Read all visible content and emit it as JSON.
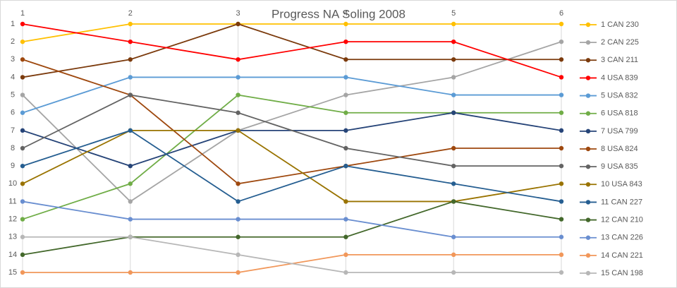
{
  "chart_data": {
    "type": "line",
    "title": "Progress NA Soling 2008",
    "x": [
      1,
      2,
      3,
      4,
      5,
      6
    ],
    "xlim": [
      1,
      6
    ],
    "xticks": [
      1,
      2,
      3,
      4,
      5,
      6
    ],
    "ylim": [
      1,
      15
    ],
    "y_reversed": true,
    "yticks": [
      1,
      2,
      3,
      4,
      5,
      6,
      7,
      8,
      9,
      10,
      11,
      12,
      13,
      14,
      15
    ],
    "grid": "x",
    "legend": "right",
    "series": [
      {
        "name": "1 CAN 230",
        "color": "#ffc000",
        "values": [
          2,
          1,
          1,
          1,
          1,
          1
        ]
      },
      {
        "name": "2 CAN 225",
        "color": "#a5a5a5",
        "values": [
          5,
          11,
          7,
          5,
          4,
          2
        ]
      },
      {
        "name": "3 CAN 211",
        "color": "#7b3a0c",
        "values": [
          4,
          3,
          1,
          3,
          3,
          3
        ]
      },
      {
        "name": "4 USA 839",
        "color": "#ff0000",
        "values": [
          1,
          2,
          3,
          2,
          2,
          4
        ]
      },
      {
        "name": "5 USA 832",
        "color": "#5b9bd5",
        "values": [
          6,
          4,
          4,
          4,
          5,
          5
        ]
      },
      {
        "name": "6 USA 818",
        "color": "#70ad47",
        "values": [
          12,
          10,
          5,
          6,
          6,
          6
        ]
      },
      {
        "name": "7 USA 799",
        "color": "#264478",
        "values": [
          7,
          9,
          7,
          7,
          6,
          7
        ]
      },
      {
        "name": "8 USA 824",
        "color": "#9e480e",
        "values": [
          3,
          5,
          10,
          9,
          8,
          8
        ]
      },
      {
        "name": "9 USA 835",
        "color": "#636363",
        "values": [
          8,
          5,
          6,
          8,
          9,
          9
        ]
      },
      {
        "name": "10 USA 843",
        "color": "#997300",
        "values": [
          10,
          7,
          7,
          11,
          11,
          10
        ]
      },
      {
        "name": "11 CAN 227",
        "color": "#255e91",
        "values": [
          9,
          7,
          11,
          9,
          10,
          11
        ]
      },
      {
        "name": "12 CAN 210",
        "color": "#43682b",
        "values": [
          14,
          13,
          13,
          13,
          11,
          12
        ]
      },
      {
        "name": "13 CAN 226",
        "color": "#698ed0",
        "values": [
          11,
          12,
          12,
          12,
          13,
          13
        ]
      },
      {
        "name": "14 CAN 221",
        "color": "#f1975a",
        "values": [
          15,
          15,
          15,
          14,
          14,
          14
        ]
      },
      {
        "name": "15 CAN 198",
        "color": "#b7b7b7",
        "values": [
          13,
          13,
          14,
          15,
          15,
          15
        ]
      }
    ]
  }
}
